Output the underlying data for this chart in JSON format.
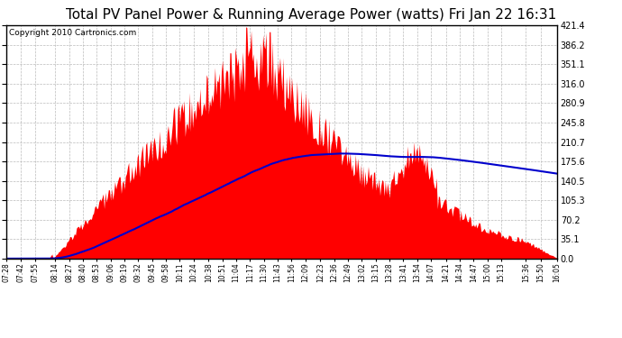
{
  "title": "Total PV Panel Power & Running Average Power (watts) Fri Jan 22 16:31",
  "copyright": "Copyright 2010 Cartronics.com",
  "ylabel_right_ticks": [
    0.0,
    35.1,
    70.2,
    105.3,
    140.5,
    175.6,
    210.7,
    245.8,
    280.9,
    316.0,
    351.1,
    386.2,
    421.4
  ],
  "ymax": 421.4,
  "ymin": 0.0,
  "bar_color": "#ff0000",
  "avg_line_color": "#0000cc",
  "background_color": "#ffffff",
  "plot_bg_color": "#ffffff",
  "grid_color": "#bbbbbb",
  "title_fontsize": 11,
  "copyright_fontsize": 6.5,
  "x_labels": [
    "07:28",
    "07:42",
    "07:55",
    "08:14",
    "08:27",
    "08:40",
    "08:53",
    "09:06",
    "09:19",
    "09:32",
    "09:45",
    "09:58",
    "10:11",
    "10:24",
    "10:38",
    "10:51",
    "11:04",
    "11:17",
    "11:30",
    "11:43",
    "11:56",
    "12:09",
    "12:23",
    "12:36",
    "12:49",
    "13:02",
    "13:15",
    "13:28",
    "13:41",
    "13:54",
    "14:07",
    "14:21",
    "14:34",
    "14:47",
    "15:00",
    "15:13",
    "15:36",
    "15:50",
    "16:05"
  ]
}
